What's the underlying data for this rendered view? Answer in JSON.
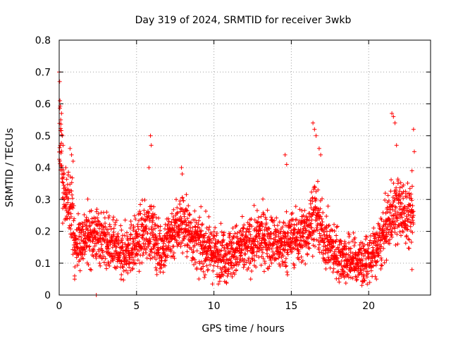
{
  "chart_data": {
    "type": "scatter",
    "title": "Day 319 of 2024, SRMTID for receiver 3wkb",
    "xlabel": "GPS time / hours",
    "ylabel": "SRMTID / TECUs",
    "xlim": [
      0,
      24
    ],
    "ylim": [
      0,
      0.8
    ],
    "xticks": [
      0,
      5,
      10,
      15,
      20
    ],
    "yticks": [
      0,
      0.1,
      0.2,
      0.3,
      0.4,
      0.5,
      0.6,
      0.7,
      0.8
    ],
    "grid": true,
    "marker": "+",
    "series": [
      {
        "name": "SRMTID",
        "color": "#ff0000",
        "profile": [
          [
            0.0,
            0.45
          ],
          [
            0.1,
            0.52
          ],
          [
            0.2,
            0.35
          ],
          [
            0.4,
            0.28
          ],
          [
            0.6,
            0.3
          ],
          [
            0.8,
            0.3
          ],
          [
            1.0,
            0.15
          ],
          [
            1.3,
            0.17
          ],
          [
            1.6,
            0.18
          ],
          [
            2.0,
            0.19
          ],
          [
            2.5,
            0.19
          ],
          [
            3.0,
            0.17
          ],
          [
            3.5,
            0.15
          ],
          [
            4.0,
            0.12
          ],
          [
            4.5,
            0.15
          ],
          [
            5.0,
            0.16
          ],
          [
            5.5,
            0.2
          ],
          [
            6.0,
            0.2
          ],
          [
            6.5,
            0.14
          ],
          [
            7.0,
            0.17
          ],
          [
            7.5,
            0.21
          ],
          [
            8.0,
            0.23
          ],
          [
            8.5,
            0.19
          ],
          [
            9.0,
            0.16
          ],
          [
            9.5,
            0.15
          ],
          [
            10.0,
            0.13
          ],
          [
            10.5,
            0.13
          ],
          [
            11.0,
            0.13
          ],
          [
            11.5,
            0.14
          ],
          [
            12.0,
            0.15
          ],
          [
            12.5,
            0.16
          ],
          [
            13.0,
            0.18
          ],
          [
            13.5,
            0.18
          ],
          [
            14.0,
            0.16
          ],
          [
            14.5,
            0.16
          ],
          [
            15.0,
            0.18
          ],
          [
            15.5,
            0.18
          ],
          [
            16.0,
            0.2
          ],
          [
            16.5,
            0.26
          ],
          [
            17.0,
            0.19
          ],
          [
            17.5,
            0.15
          ],
          [
            18.0,
            0.13
          ],
          [
            18.5,
            0.11
          ],
          [
            19.0,
            0.11
          ],
          [
            19.5,
            0.1
          ],
          [
            20.0,
            0.11
          ],
          [
            20.5,
            0.14
          ],
          [
            21.0,
            0.19
          ],
          [
            21.5,
            0.26
          ],
          [
            22.0,
            0.27
          ],
          [
            22.5,
            0.25
          ],
          [
            22.9,
            0.24
          ]
        ],
        "spread": 0.05,
        "count": 2750
      }
    ],
    "notable_points": [
      [
        0.0,
        0.7
      ],
      [
        0.03,
        0.67
      ],
      [
        0.05,
        0.61
      ],
      [
        0.15,
        0.57
      ],
      [
        0.1,
        0.55
      ],
      [
        0.2,
        0.5
      ],
      [
        0.25,
        0.47
      ],
      [
        0.7,
        0.46
      ],
      [
        0.8,
        0.44
      ],
      [
        0.9,
        0.42
      ],
      [
        1.0,
        0.06
      ],
      [
        1.0,
        0.05
      ],
      [
        2.4,
        0.0
      ],
      [
        5.9,
        0.5
      ],
      [
        5.95,
        0.47
      ],
      [
        5.8,
        0.4
      ],
      [
        7.9,
        0.4
      ],
      [
        7.95,
        0.38
      ],
      [
        14.6,
        0.44
      ],
      [
        14.7,
        0.41
      ],
      [
        16.4,
        0.54
      ],
      [
        16.5,
        0.52
      ],
      [
        16.6,
        0.5
      ],
      [
        16.8,
        0.46
      ],
      [
        16.9,
        0.44
      ],
      [
        21.5,
        0.57
      ],
      [
        21.6,
        0.56
      ],
      [
        21.7,
        0.54
      ],
      [
        21.8,
        0.47
      ],
      [
        22.9,
        0.52
      ],
      [
        22.95,
        0.45
      ],
      [
        22.8,
        0.39
      ],
      [
        22.8,
        0.08
      ],
      [
        10.8,
        0.04
      ],
      [
        4.0,
        0.05
      ]
    ]
  }
}
